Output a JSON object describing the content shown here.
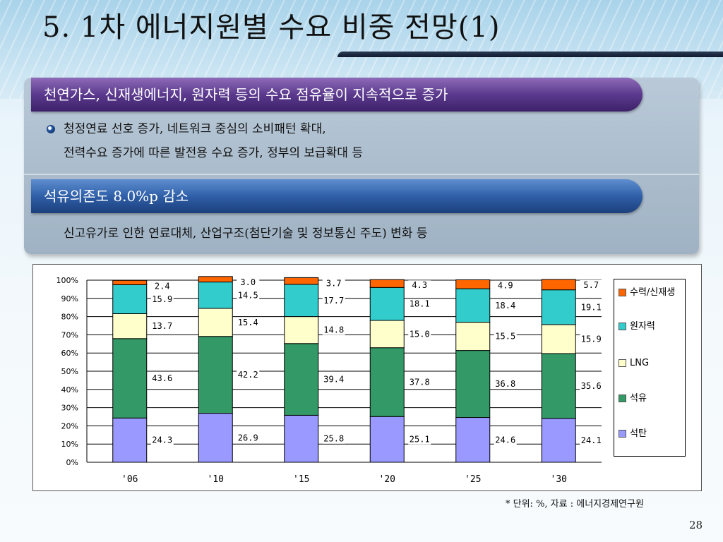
{
  "slide": {
    "title": "5. 1차 에너지원별 수요 비중 전망(1)",
    "page_number": "28",
    "source_note": "* 단위: %, 자료 : 에너지경제연구원"
  },
  "section1": {
    "heading": "천연가스, 신재생에너지, 원자력 등의 수요 점유율이 지속적으로 증가",
    "lines": [
      "청정연료 선호 증가, 네트워크 중심의 소비패턴 확대,",
      "전력수요 증가에 따른 발전용 수요 증가, 정부의 보급확대 등"
    ]
  },
  "section2": {
    "heading": "석유의존도 8.0%p 감소",
    "line": "신고유가로 인한 연료대체, 산업구조(첨단기술 및 정보통신 주도) 변화 등"
  },
  "colors": {
    "coal": "#9999ff",
    "oil": "#339966",
    "lng": "#ffffcc",
    "nuclear": "#33cccc",
    "hydro": "#ff6600"
  },
  "chart_data": {
    "type": "bar",
    "stacked": true,
    "normalized_percent": true,
    "categories": [
      "'06",
      "'10",
      "'15",
      "'20",
      "'25",
      "'30"
    ],
    "y_ticks": [
      "0%",
      "10%",
      "20%",
      "30%",
      "40%",
      "50%",
      "60%",
      "70%",
      "80%",
      "90%",
      "100%"
    ],
    "ylim": [
      0,
      100
    ],
    "grid": true,
    "legend_position": "right",
    "series": [
      {
        "name": "석탄",
        "color": "#9999ff",
        "values": [
          24.3,
          26.9,
          25.8,
          25.1,
          24.6,
          24.1
        ],
        "labels": [
          "24.3",
          "26.9",
          "25.8",
          "25.1",
          "24.6",
          "24.1"
        ]
      },
      {
        "name": "석유",
        "color": "#339966",
        "values": [
          43.6,
          42.2,
          39.4,
          37.8,
          36.8,
          35.6
        ],
        "labels": [
          "43.6",
          "42.2",
          "39.4",
          "37.8",
          "36.8",
          "35.6"
        ]
      },
      {
        "name": "LNG",
        "color": "#ffffcc",
        "values": [
          13.7,
          15.4,
          14.8,
          15.0,
          15.5,
          15.9
        ],
        "labels": [
          "13.7",
          "15.4",
          "14.8",
          "15.0",
          "15.5",
          "15.9"
        ]
      },
      {
        "name": "원자력",
        "color": "#33cccc",
        "values": [
          15.9,
          14.5,
          17.7,
          18.1,
          18.4,
          19.1
        ],
        "labels": [
          "15.9",
          "14.5",
          "17.7",
          "18.1",
          "18.4",
          "19.1"
        ]
      },
      {
        "name": "수력/신재생",
        "color": "#ff6600",
        "values": [
          2.4,
          3.0,
          3.7,
          4.3,
          4.9,
          5.7
        ],
        "labels": [
          "2.4",
          "3.0",
          "3.7",
          "4.3",
          "4.9",
          "5.7"
        ]
      }
    ],
    "legend_order": [
      "수력/신재생",
      "원자력",
      "LNG",
      "석유",
      "석탄"
    ]
  }
}
